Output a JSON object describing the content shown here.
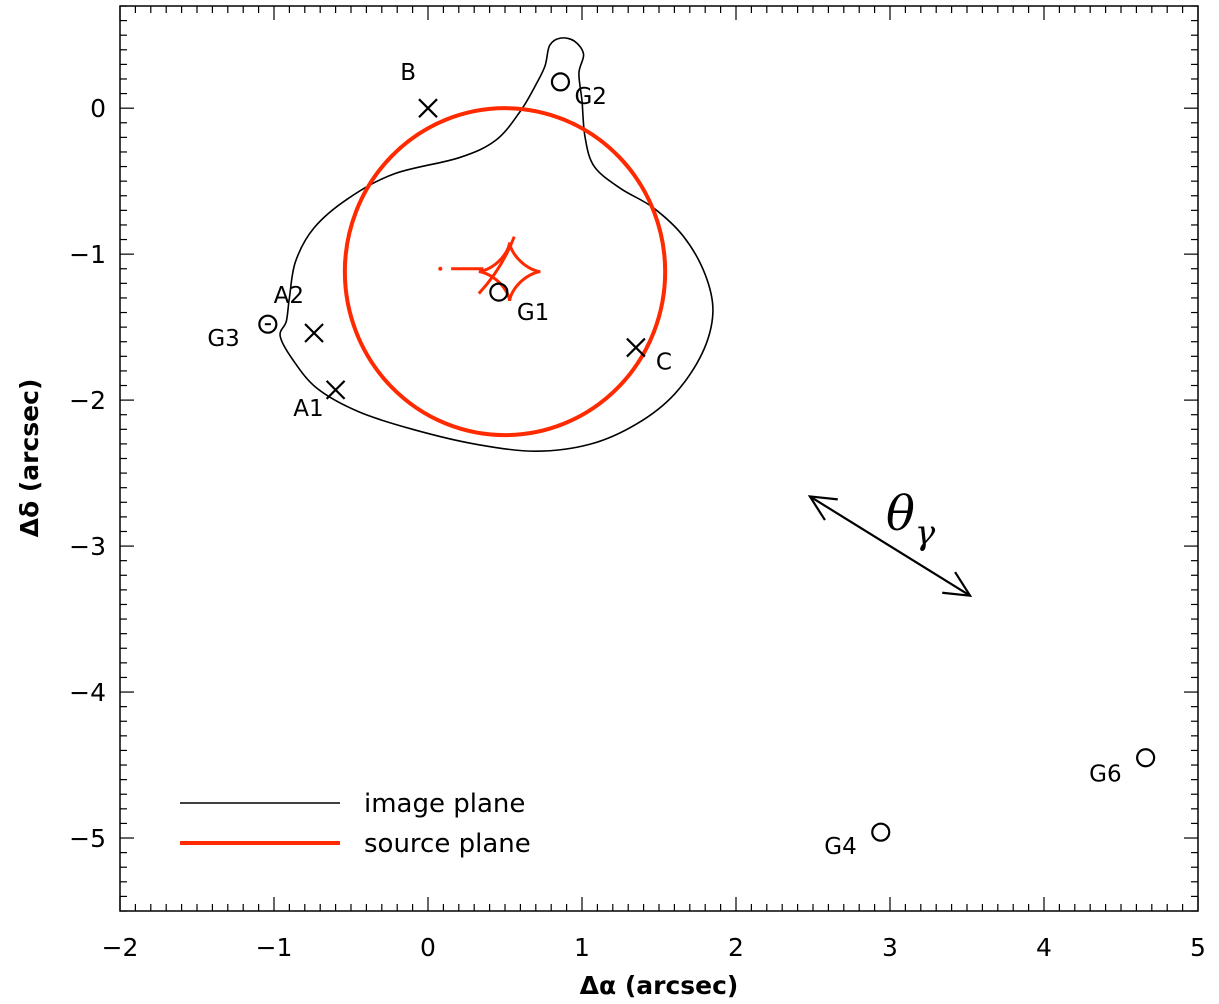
{
  "chart_data": {
    "type": "scatter",
    "xlabel": "Δα (arcsec)",
    "ylabel": "Δδ (arcsec)",
    "xlim": [
      -2,
      5
    ],
    "ylim": [
      -5.5,
      0.7
    ],
    "xticks": [
      -2,
      -1,
      0,
      1,
      2,
      3,
      4,
      5
    ],
    "xtick_labels": [
      "−2",
      "−1",
      "0",
      "1",
      "2",
      "3",
      "4",
      "5"
    ],
    "yticks": [
      0,
      -1,
      -2,
      -3,
      -4,
      -5
    ],
    "ytick_labels": [
      "0",
      "−1",
      "−2",
      "−3",
      "−4",
      "−5"
    ],
    "grid": false,
    "legend_position": "bottom-left",
    "series": [
      {
        "name": "image plane",
        "kind": "line",
        "color": "#000000",
        "points": [
          [
            0.76,
            0.29
          ],
          [
            0.79,
            0.43
          ],
          [
            0.86,
            0.48
          ],
          [
            0.95,
            0.46
          ],
          [
            1.01,
            0.37
          ],
          [
            0.98,
            0.24
          ],
          [
            1.0,
            0.05
          ],
          [
            1.02,
            -0.2
          ],
          [
            1.08,
            -0.4
          ],
          [
            1.25,
            -0.55
          ],
          [
            1.46,
            -0.68
          ],
          [
            1.66,
            -0.88
          ],
          [
            1.8,
            -1.14
          ],
          [
            1.85,
            -1.4
          ],
          [
            1.78,
            -1.68
          ],
          [
            1.6,
            -1.96
          ],
          [
            1.36,
            -2.16
          ],
          [
            1.06,
            -2.3
          ],
          [
            0.7,
            -2.35
          ],
          [
            0.3,
            -2.3
          ],
          [
            -0.1,
            -2.2
          ],
          [
            -0.45,
            -2.08
          ],
          [
            -0.72,
            -1.92
          ],
          [
            -0.88,
            -1.72
          ],
          [
            -0.96,
            -1.56
          ],
          [
            -0.92,
            -1.46
          ],
          [
            -0.9,
            -1.3
          ],
          [
            -0.86,
            -1.05
          ],
          [
            -0.74,
            -0.82
          ],
          [
            -0.52,
            -0.62
          ],
          [
            -0.22,
            -0.45
          ],
          [
            0.2,
            -0.34
          ],
          [
            0.44,
            -0.22
          ],
          [
            0.6,
            -0.02
          ],
          [
            0.7,
            0.16
          ],
          [
            0.76,
            0.29
          ]
        ]
      },
      {
        "name": "source plane",
        "kind": "line",
        "color": "#ff2a00",
        "circle": {
          "center": [
            0.5,
            -1.12
          ],
          "radius_x": 1.04,
          "radius_y": 1.12
        }
      }
    ],
    "caustic": {
      "color": "#ff2a00",
      "astroid": {
        "center": [
          0.53,
          -1.12
        ],
        "radius": 0.2
      },
      "fold": [
        [
          0.33,
          -1.27
        ],
        [
          0.48,
          -1.1
        ],
        [
          0.56,
          -0.88
        ]
      ],
      "tail": [
        [
          0.15,
          -1.1
        ],
        [
          0.36,
          -1.1
        ]
      ],
      "dot": [
        0.08,
        -1.1
      ]
    },
    "images": [
      {
        "label": "B",
        "x": 0.0,
        "y": 0.0
      },
      {
        "label": "A2",
        "x": -0.74,
        "y": -1.54
      },
      {
        "label": "A1",
        "x": -0.6,
        "y": -1.93
      },
      {
        "label": "C",
        "x": 1.35,
        "y": -1.64
      }
    ],
    "galaxies": [
      {
        "label": "G2",
        "x": 0.86,
        "y": 0.18
      },
      {
        "label": "G1",
        "x": 0.46,
        "y": -1.26
      },
      {
        "label": "G3",
        "x": -1.04,
        "y": -1.48
      },
      {
        "label": "G4",
        "x": 2.94,
        "y": -4.96
      },
      {
        "label": "G6",
        "x": 4.66,
        "y": -4.45
      }
    ],
    "shear_arrow": {
      "label": "θγ",
      "from": [
        2.48,
        -2.66
      ],
      "to": [
        3.52,
        -3.34
      ]
    }
  }
}
